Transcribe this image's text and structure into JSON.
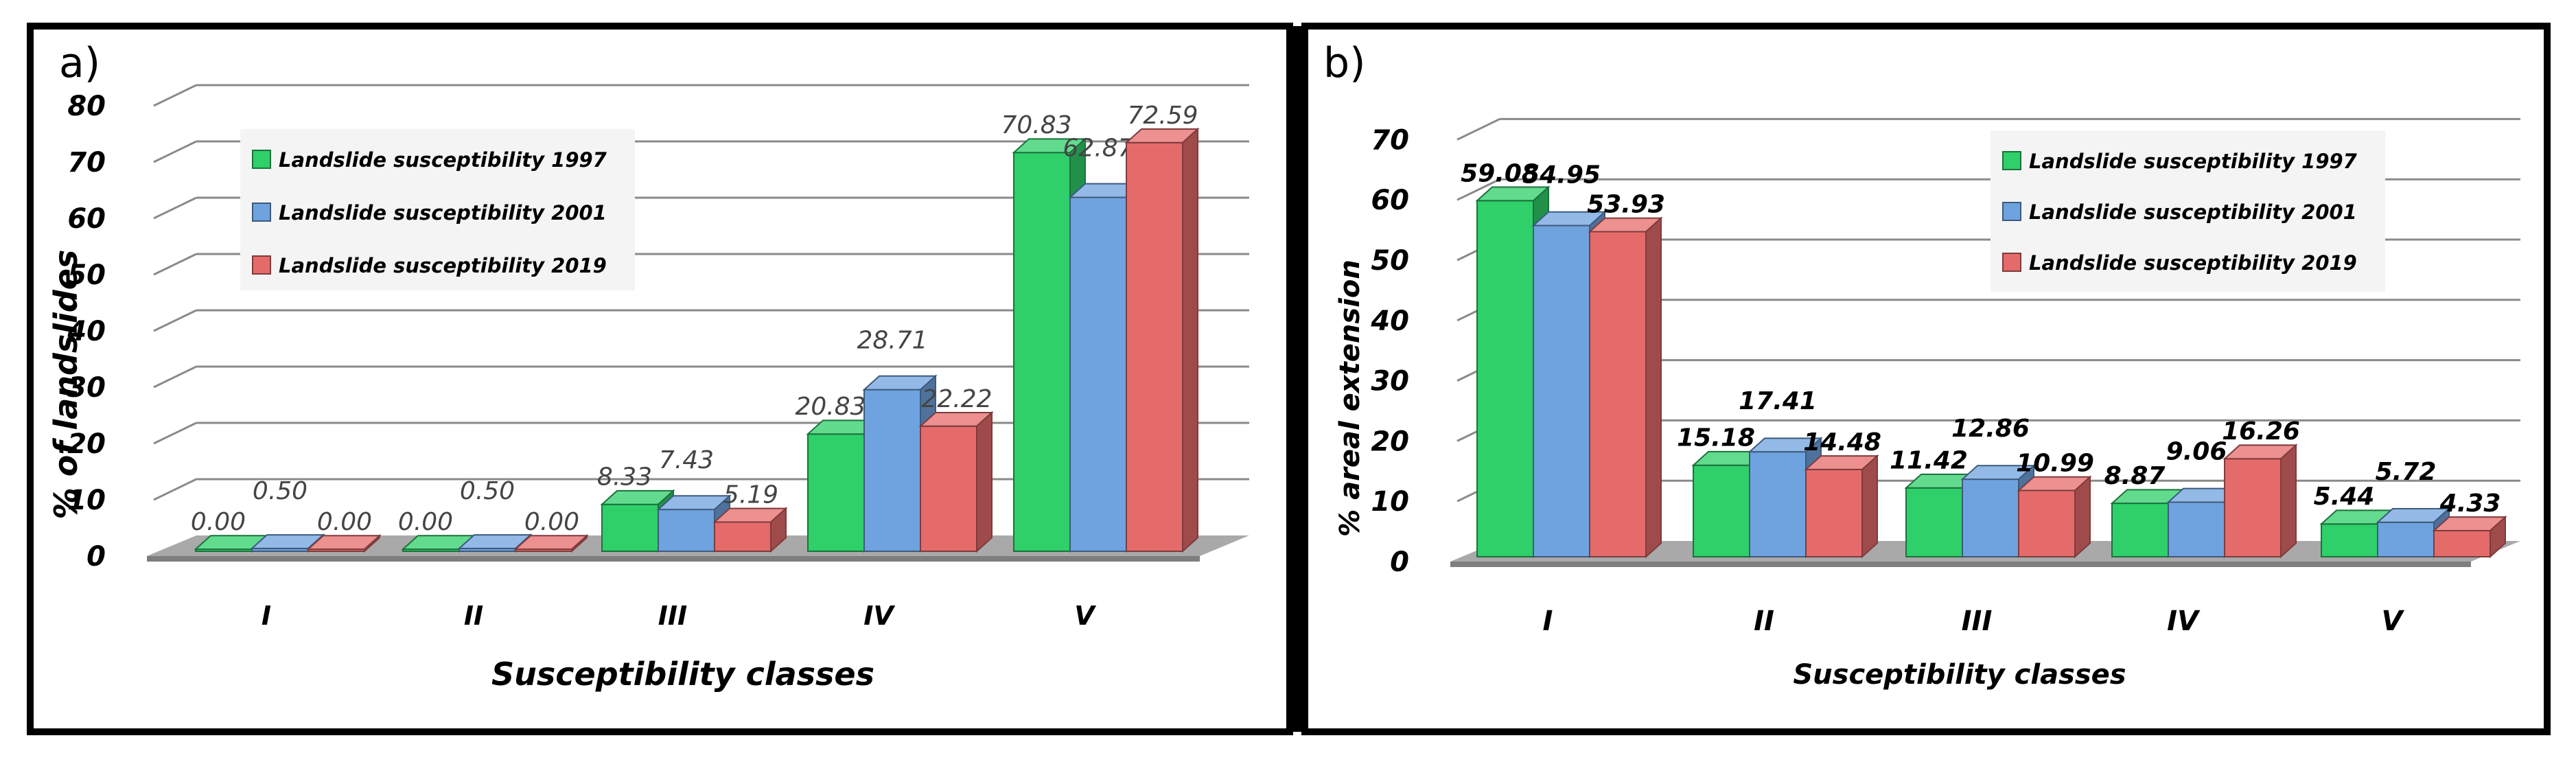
{
  "figure": {
    "panels": [
      {
        "panel_label": "a)",
        "ylabel": "% of landslides",
        "xlabel": "Susceptibility classes"
      },
      {
        "panel_label": "b)",
        "ylabel": "% areal extension",
        "xlabel": "Susceptibility classes"
      }
    ]
  },
  "chart_data": [
    {
      "type": "bar",
      "style": "3d-clustered-column",
      "categories": [
        "I",
        "II",
        "III",
        "IV",
        "V"
      ],
      "series": [
        {
          "name": "Landslide susceptibility 1997",
          "values": [
            0.0,
            0.0,
            8.33,
            20.83,
            70.83
          ],
          "labels": [
            "0.00",
            "0.00",
            "8.33",
            "20.83",
            "70.83"
          ],
          "color": "#2fcf6a"
        },
        {
          "name": "Landslide susceptibility 2001",
          "values": [
            0.5,
            0.5,
            7.43,
            28.71,
            62.87
          ],
          "labels": [
            "0.50",
            "0.50",
            "7.43",
            "28.71",
            "62.87"
          ],
          "color": "#6fa3df"
        },
        {
          "name": "Landslide susceptibility 2019",
          "values": [
            0.0,
            0.0,
            5.19,
            22.22,
            72.59
          ],
          "labels": [
            "0.00",
            "0.00",
            "5.19",
            "22.22",
            "72.59"
          ],
          "color": "#e56b6b"
        }
      ],
      "yticks": [
        "0",
        "10",
        "20",
        "30",
        "40",
        "50",
        "60",
        "70",
        "80"
      ],
      "ylim": [
        0,
        80
      ],
      "xlabel": "Susceptibility classes",
      "ylabel": "% of landslides",
      "legend_position": "upper-left",
      "grid": true
    },
    {
      "type": "bar",
      "style": "3d-clustered-column",
      "categories": [
        "I",
        "II",
        "III",
        "IV",
        "V"
      ],
      "series": [
        {
          "name": "Landslide susceptibility 1997",
          "values": [
            59.08,
            15.18,
            11.42,
            8.87,
            5.44
          ],
          "labels": [
            "59.08",
            "15.18",
            "11.42",
            "8.87",
            "5.44"
          ],
          "color": "#2fcf6a"
        },
        {
          "name": "Landslide susceptibility 2001",
          "values": [
            54.95,
            17.41,
            12.86,
            9.06,
            5.72
          ],
          "labels": [
            "54.95",
            "17.41",
            "12.86",
            "9.06",
            "5.72"
          ],
          "color": "#6fa3df"
        },
        {
          "name": "Landslide susceptibility 2019",
          "values": [
            53.93,
            14.48,
            10.99,
            16.26,
            4.33
          ],
          "labels": [
            "53.93",
            "14.48",
            "10.99",
            "16.26",
            "4.33"
          ],
          "color": "#e56b6b"
        }
      ],
      "yticks": [
        "0",
        "10",
        "20",
        "30",
        "40",
        "50",
        "60",
        "70"
      ],
      "ylim": [
        0,
        70
      ],
      "xlabel": "Susceptibility classes",
      "ylabel": "% areal extension",
      "legend_position": "upper-right",
      "grid": true
    }
  ]
}
